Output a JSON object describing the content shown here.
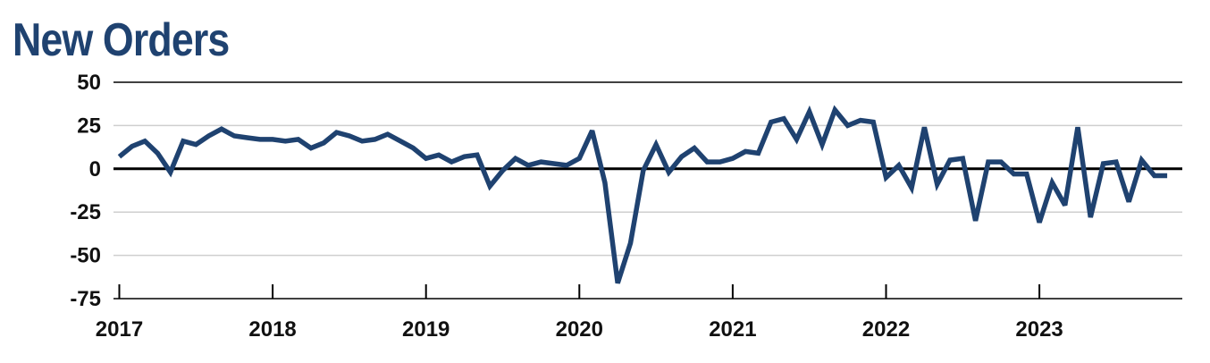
{
  "chart_data": {
    "type": "line",
    "title": "New Orders",
    "xlabel": "",
    "ylabel": "",
    "ylim": [
      -75,
      50
    ],
    "yticks": [
      "50",
      "25",
      "0",
      "-25",
      "-50",
      "-75"
    ],
    "xticks": [
      "2017",
      "2018",
      "2019",
      "2020",
      "2021",
      "2022",
      "2023"
    ],
    "grid": true,
    "legend": "none",
    "series": [
      {
        "color": "#1f4270",
        "x_start": "2017-01",
        "frequency": "monthly",
        "values": [
          7,
          13,
          16,
          9,
          -2,
          16,
          14,
          19,
          23,
          19,
          18,
          17,
          17,
          16,
          17,
          12,
          15,
          21,
          19,
          16,
          17,
          20,
          16,
          12,
          6,
          8,
          4,
          7,
          8,
          -10,
          -1,
          6,
          2,
          4,
          3,
          2,
          6,
          22,
          -8,
          -66,
          -43,
          -1,
          14,
          -2,
          7,
          12,
          4,
          4,
          6,
          10,
          9,
          27,
          29,
          17,
          33,
          14,
          34,
          25,
          28,
          27,
          -5,
          2,
          -11,
          24,
          -9,
          5,
          6,
          -30,
          4,
          4,
          -3,
          -3,
          -31,
          -8,
          -21,
          24,
          -28,
          3,
          4,
          -19,
          5,
          -4,
          -4
        ]
      }
    ]
  }
}
